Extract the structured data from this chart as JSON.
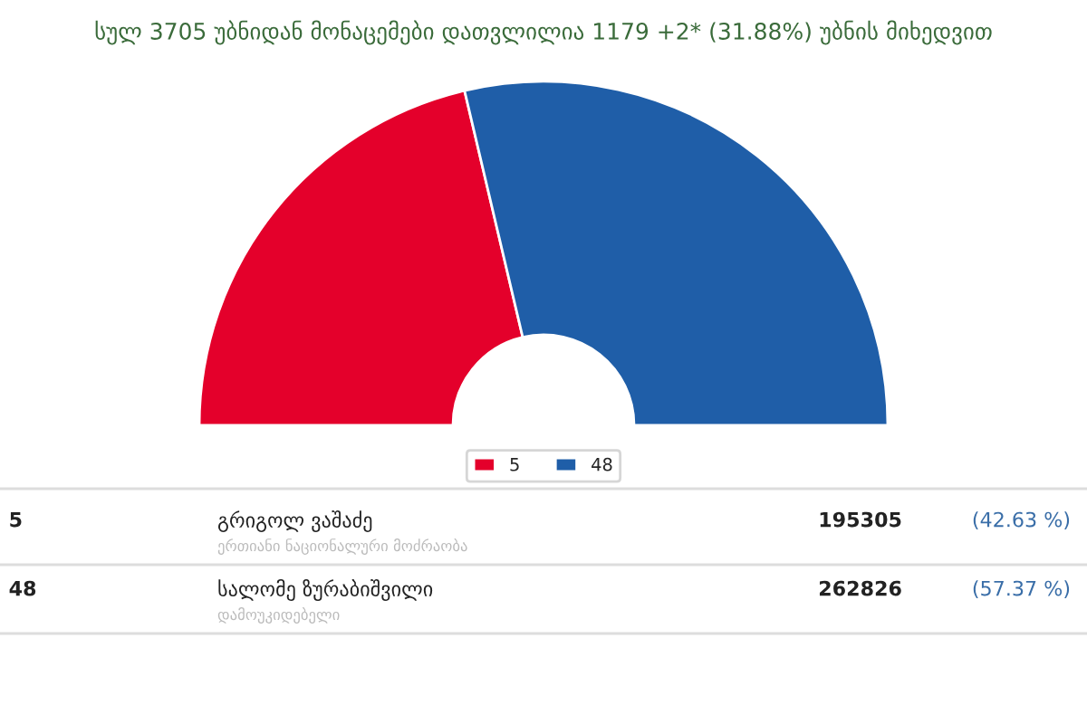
{
  "chart_data": {
    "type": "donut",
    "title": "სულ 3705 უბნიდან მონაცემები დათვლილია 1179 +2* (31.88%) უბნის მიხედვით",
    "categories": [
      "5",
      "48"
    ],
    "values": [
      42.63,
      57.37
    ],
    "colors": [
      "#e4002b",
      "#1f5ea8"
    ],
    "legend": "bottom",
    "annotations": [
      "გრიგოლ ვაშაძე",
      "ერთიანი ნაციონალური მოძრაობა",
      "195305",
      "(42.63 %)",
      "სალომე ზურაბიშვილი",
      "დამოუკიდებელი",
      "262826",
      "(57.37 %)"
    ]
  }
}
